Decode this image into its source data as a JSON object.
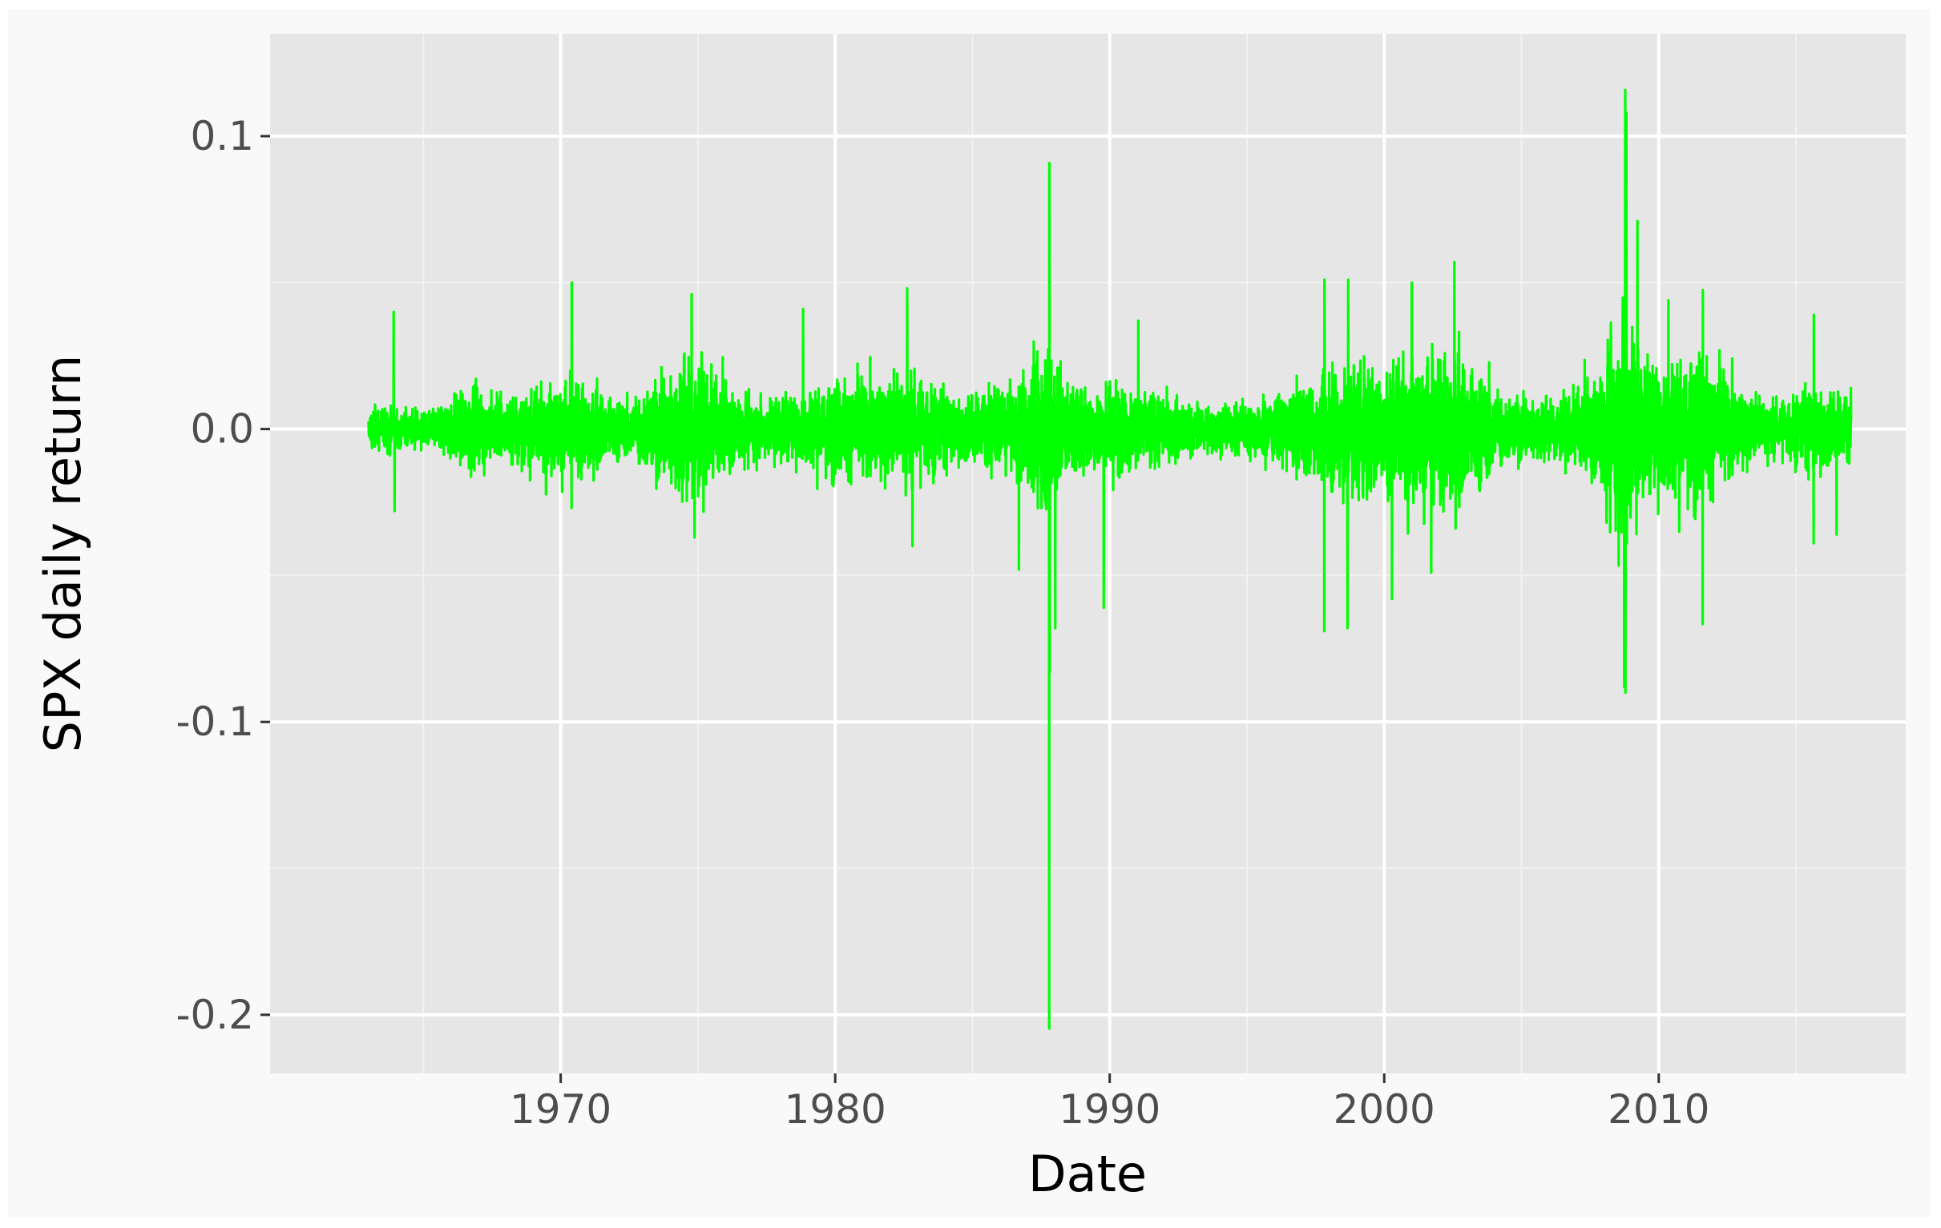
{
  "chart_data": {
    "type": "line",
    "title": "",
    "xlabel": "Date",
    "ylabel": "SPX daily return",
    "xlim": [
      "1959-06-01",
      "2018-12-31"
    ],
    "ylim": [
      -0.22,
      0.135
    ],
    "x_ticks": [
      "1970-01-01",
      "1980-01-01",
      "1990-01-01",
      "2000-01-01",
      "2010-01-01"
    ],
    "x_tick_labels": [
      "1970",
      "1980",
      "1990",
      "2000",
      "2010"
    ],
    "y_ticks": [
      0.1,
      0.0,
      -0.1,
      -0.2
    ],
    "y_tick_labels": [
      "0.1",
      "0.0",
      "-0.1",
      "-0.2"
    ],
    "grid": true,
    "legend": "none",
    "series": [
      {
        "color": "#00ff00",
        "date_range": [
          "1963-01-02",
          "2017-01-03"
        ],
        "frequency": "daily",
        "baseline": 0.0,
        "notable_values": [
          {
            "x": "1963-12-01",
            "y": 0.04
          },
          {
            "x": "1963-12-15",
            "y": -0.028
          },
          {
            "x": "1970-05-27",
            "y": 0.05
          },
          {
            "x": "1970-05-26",
            "y": -0.027
          },
          {
            "x": "1974-10-09",
            "y": 0.046
          },
          {
            "x": "1974-11-18",
            "y": -0.037
          },
          {
            "x": "1978-11-01",
            "y": 0.041
          },
          {
            "x": "1982-08-17",
            "y": 0.048
          },
          {
            "x": "1982-10-25",
            "y": -0.04
          },
          {
            "x": "1986-09-11",
            "y": -0.048
          },
          {
            "x": "1987-10-19",
            "y": -0.2047
          },
          {
            "x": "1987-10-21",
            "y": 0.0908
          },
          {
            "x": "1987-10-26",
            "y": -0.083
          },
          {
            "x": "1988-01-08",
            "y": -0.068
          },
          {
            "x": "1989-10-13",
            "y": -0.061
          },
          {
            "x": "1991-01-17",
            "y": 0.037
          },
          {
            "x": "1997-10-27",
            "y": -0.069
          },
          {
            "x": "1997-10-28",
            "y": 0.051
          },
          {
            "x": "1998-08-31",
            "y": -0.068
          },
          {
            "x": "1998-09-08",
            "y": 0.051
          },
          {
            "x": "2000-04-14",
            "y": -0.058
          },
          {
            "x": "2001-01-03",
            "y": 0.05
          },
          {
            "x": "2001-09-17",
            "y": -0.049
          },
          {
            "x": "2002-07-24",
            "y": 0.057
          },
          {
            "x": "2008-09-29",
            "y": -0.088
          },
          {
            "x": "2008-10-13",
            "y": 0.1158
          },
          {
            "x": "2008-10-15",
            "y": -0.09
          },
          {
            "x": "2008-10-28",
            "y": 0.108
          },
          {
            "x": "2009-03-23",
            "y": 0.071
          },
          {
            "x": "2010-05-10",
            "y": 0.044
          },
          {
            "x": "2011-08-08",
            "y": -0.0666
          },
          {
            "x": "2011-08-09",
            "y": 0.0474
          },
          {
            "x": "2015-08-24",
            "y": -0.039
          },
          {
            "x": "2015-08-26",
            "y": 0.039
          },
          {
            "x": "2016-06-24",
            "y": -0.036
          }
        ],
        "volatility_envelope": [
          {
            "x": "1963-01-01",
            "y": 0.006
          },
          {
            "x": "1965-06-01",
            "y": 0.006
          },
          {
            "x": "1966-10-01",
            "y": 0.012
          },
          {
            "x": "1968-06-01",
            "y": 0.01
          },
          {
            "x": "1970-06-01",
            "y": 0.016
          },
          {
            "x": "1972-06-01",
            "y": 0.008
          },
          {
            "x": "1974-09-01",
            "y": 0.022
          },
          {
            "x": "1976-06-01",
            "y": 0.01
          },
          {
            "x": "1978-06-01",
            "y": 0.01
          },
          {
            "x": "1980-06-01",
            "y": 0.015
          },
          {
            "x": "1982-09-01",
            "y": 0.016
          },
          {
            "x": "1984-06-01",
            "y": 0.01
          },
          {
            "x": "1986-06-01",
            "y": 0.012
          },
          {
            "x": "1987-11-01",
            "y": 0.025
          },
          {
            "x": "1988-06-01",
            "y": 0.014
          },
          {
            "x": "1990-10-01",
            "y": 0.013
          },
          {
            "x": "1993-06-01",
            "y": 0.007
          },
          {
            "x": "1995-06-01",
            "y": 0.008
          },
          {
            "x": "1997-06-01",
            "y": 0.014
          },
          {
            "x": "1998-10-01",
            "y": 0.02
          },
          {
            "x": "2000-06-01",
            "y": 0.02
          },
          {
            "x": "2002-08-01",
            "y": 0.025
          },
          {
            "x": "2004-06-01",
            "y": 0.01
          },
          {
            "x": "2006-06-01",
            "y": 0.009
          },
          {
            "x": "2007-10-01",
            "y": 0.015
          },
          {
            "x": "2008-11-01",
            "y": 0.04
          },
          {
            "x": "2009-06-01",
            "y": 0.02
          },
          {
            "x": "2011-09-01",
            "y": 0.022
          },
          {
            "x": "2013-06-01",
            "y": 0.01
          },
          {
            "x": "2014-06-01",
            "y": 0.008
          },
          {
            "x": "2015-09-01",
            "y": 0.013
          },
          {
            "x": "2017-01-01",
            "y": 0.01
          }
        ]
      }
    ]
  }
}
